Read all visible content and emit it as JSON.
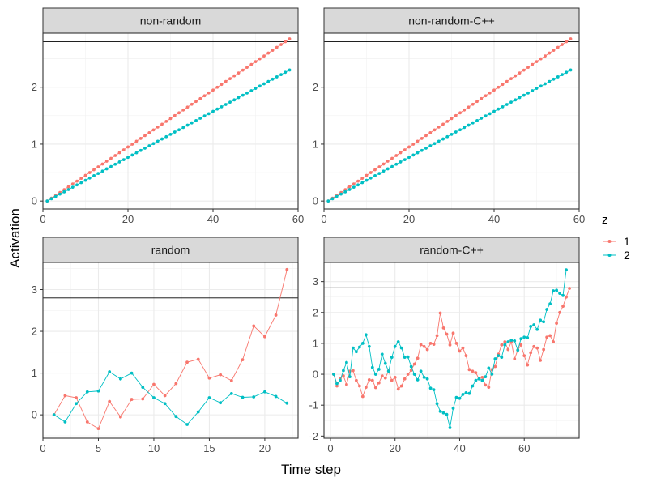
{
  "chart_data": {
    "type": "line",
    "xlabel": "Time step",
    "ylabel": "Activation",
    "legend": {
      "title": "z",
      "position": "right",
      "entries": [
        {
          "label": "1",
          "color": "#F8766D"
        },
        {
          "label": "2",
          "color": "#00BFC4"
        }
      ]
    },
    "threshold": 2.8,
    "panels": [
      {
        "title": "non-random",
        "xlim": [
          0,
          60
        ],
        "ylim": [
          -0.14,
          2.95
        ],
        "xticks": [
          0,
          20,
          40,
          60
        ],
        "yticks": [
          0,
          1,
          2
        ],
        "series": [
          {
            "name": "1",
            "kind": "linear",
            "x_start": 1,
            "x_end": 58,
            "slope": 0.05
          },
          {
            "name": "2",
            "kind": "linear",
            "x_start": 1,
            "x_end": 58,
            "slope": 0.0404
          }
        ]
      },
      {
        "title": "non-random-C++",
        "xlim": [
          0,
          60
        ],
        "ylim": [
          -0.14,
          2.95
        ],
        "xticks": [
          0,
          20,
          40,
          60
        ],
        "yticks": [
          0,
          1,
          2
        ],
        "series": [
          {
            "name": "1",
            "kind": "linear",
            "x_start": 1,
            "x_end": 58,
            "slope": 0.05
          },
          {
            "name": "2",
            "kind": "linear",
            "x_start": 1,
            "x_end": 58,
            "slope": 0.0404
          }
        ]
      },
      {
        "title": "random",
        "xlim": [
          0,
          23
        ],
        "ylim": [
          -0.56,
          3.65
        ],
        "xticks": [
          0,
          5,
          10,
          15,
          20
        ],
        "yticks": [
          0,
          1,
          2,
          3
        ],
        "series": [
          {
            "name": "1",
            "x": [
              1,
              2,
              3,
              4,
              5,
              6,
              7,
              8,
              9,
              10,
              11,
              12,
              13,
              14,
              15,
              16,
              17,
              18,
              19,
              20,
              21,
              22
            ],
            "y": [
              0.0,
              0.46,
              0.41,
              -0.17,
              -0.33,
              0.32,
              -0.05,
              0.37,
              0.38,
              0.73,
              0.46,
              0.75,
              1.26,
              1.33,
              0.88,
              0.96,
              0.82,
              1.32,
              2.13,
              1.87,
              2.39,
              3.48
            ]
          },
          {
            "name": "2",
            "x": [
              1,
              2,
              3,
              4,
              5,
              6,
              7,
              8,
              9,
              10,
              11,
              12,
              13,
              14,
              15,
              16,
              17,
              18,
              19,
              20,
              21,
              22
            ],
            "y": [
              0.0,
              -0.17,
              0.27,
              0.55,
              0.57,
              1.03,
              0.86,
              1.0,
              0.66,
              0.41,
              0.27,
              -0.04,
              -0.23,
              0.07,
              0.41,
              0.29,
              0.51,
              0.42,
              0.43,
              0.55,
              0.44,
              0.28
            ]
          }
        ]
      },
      {
        "title": "random-C++",
        "xlim": [
          -2,
          77
        ],
        "ylim": [
          -2.07,
          3.62
        ],
        "xticks": [
          0,
          20,
          40,
          60
        ],
        "yticks": [
          -2,
          -1,
          0,
          1,
          2,
          3
        ],
        "series": [
          {
            "name": "1",
            "x0": 1,
            "y": [
              0.0,
              -0.38,
              -0.15,
              -0.05,
              -0.33,
              0.1,
              0.12,
              -0.2,
              -0.38,
              -0.72,
              -0.42,
              -0.18,
              -0.2,
              -0.43,
              -0.28,
              -0.05,
              -0.12,
              0.11,
              -0.2,
              -0.1,
              -0.48,
              -0.38,
              -0.15,
              0.0,
              0.13,
              0.33,
              0.52,
              0.96,
              0.9,
              0.8,
              1.0,
              0.97,
              1.25,
              1.98,
              1.5,
              1.3,
              0.95,
              1.33,
              1.0,
              0.75,
              0.85,
              0.6,
              0.15,
              0.1,
              0.05,
              -0.15,
              -0.1,
              -0.35,
              -0.42,
              0.15,
              0.25,
              0.65,
              0.95,
              1.05,
              0.8,
              1.05,
              0.5,
              0.78,
              0.95,
              0.6,
              0.3,
              0.7,
              0.9,
              0.85,
              0.45,
              0.8,
              1.2,
              1.25,
              1.05,
              1.65,
              2.0,
              2.2,
              2.5,
              2.78
            ]
          },
          {
            "name": "2",
            "x0": 1,
            "y": [
              0.0,
              -0.3,
              -0.2,
              0.12,
              0.38,
              -0.08,
              0.85,
              0.73,
              0.88,
              1.0,
              1.28,
              0.9,
              0.22,
              0.0,
              0.16,
              0.65,
              0.35,
              0.1,
              0.55,
              0.9,
              1.05,
              0.85,
              0.55,
              0.56,
              0.25,
              0.0,
              -0.18,
              0.1,
              -0.1,
              -0.15,
              -0.45,
              -0.5,
              -0.95,
              -1.2,
              -1.25,
              -1.3,
              -1.73,
              -1.1,
              -0.75,
              -0.78,
              -0.65,
              -0.6,
              -0.62,
              -0.38,
              -0.2,
              -0.15,
              -0.2,
              -0.08,
              0.2,
              0.0,
              0.5,
              0.6,
              0.55,
              0.95,
              1.05,
              1.1,
              1.08,
              0.78,
              1.15,
              1.2,
              1.18,
              1.55,
              1.6,
              1.45,
              1.75,
              1.7,
              2.1,
              2.28,
              2.7,
              2.72,
              2.62,
              2.55,
              3.38
            ]
          }
        ]
      }
    ]
  }
}
